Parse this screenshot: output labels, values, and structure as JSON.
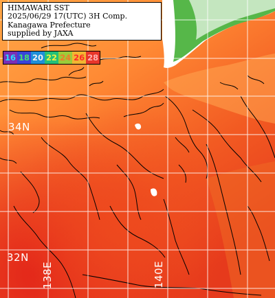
{
  "title_lines": [
    "HIMAWARI SST",
    "2025/06/29 17(UTC) 3H Comp.",
    "Kanagawa Prefecture",
    "supplied by JAXA"
  ],
  "legend": [
    {
      "label": "16",
      "bg": "#7a2fb6",
      "fg": "#27e0ff"
    },
    {
      "label": "18",
      "bg": "#3a44d8",
      "fg": "#48e070"
    },
    {
      "label": "20",
      "bg": "#1f8fd8",
      "fg": "#f0f0f0"
    },
    {
      "label": "22",
      "bg": "#24c079",
      "fg": "#f5f040"
    },
    {
      "label": "24",
      "bg": "#9ccc3a",
      "fg": "#f07a2a"
    },
    {
      "label": "26",
      "bg": "#f2b532",
      "fg": "#ff2a2a"
    },
    {
      "label": "28",
      "bg": "#e8362b",
      "fg": "#ffb2b2"
    }
  ],
  "lat_labels": [
    "34N",
    "32N"
  ],
  "lon_labels": [
    "138E",
    "140E"
  ],
  "colors": {
    "land": "#ffffff",
    "land_low": "#58b84a",
    "sea_cool": "#ff9f3c",
    "sea_mid": "#ff7e2c",
    "sea_warm": "#f14a1e",
    "sea_hot": "#e8321c",
    "grid": "#ffffff",
    "contour": "#000000"
  }
}
